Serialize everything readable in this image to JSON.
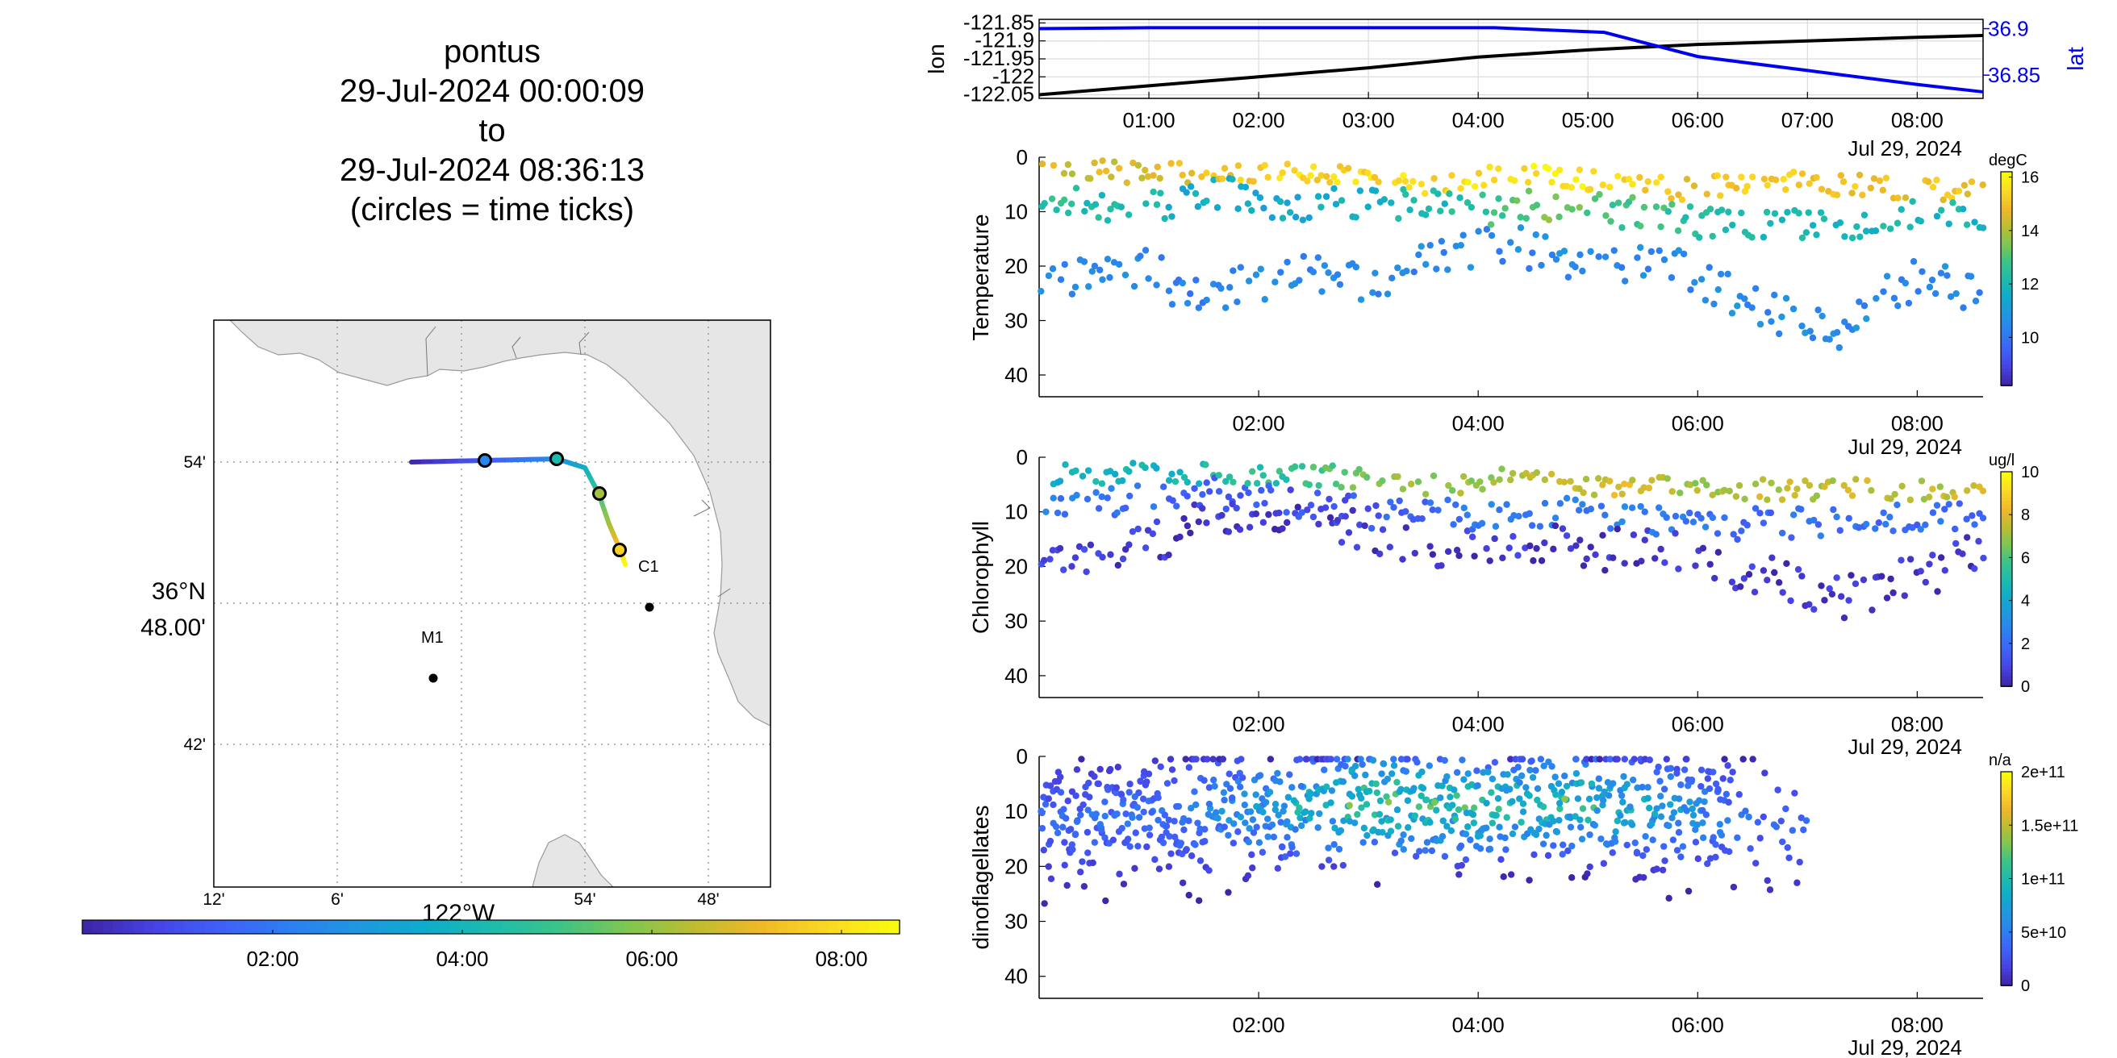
{
  "header": {
    "lines": [
      "pontus",
      "29-Jul-2024 00:00:09",
      "to",
      "29-Jul-2024 08:36:13",
      "(circles = time ticks)"
    ]
  },
  "colors": {
    "parula": [
      "#3e26a8",
      "#4743e3",
      "#3f61f8",
      "#2d7ff0",
      "#2196e0",
      "#0fabcc",
      "#1ebbad",
      "#3bc388",
      "#7dc653",
      "#bcbd32",
      "#efb82a",
      "#fbd824",
      "#f9fb0e"
    ],
    "track_lat": "#0000ee",
    "track_lon": "#000000",
    "map_land": "#e6e6e6",
    "station_dot": "#000000"
  },
  "map": {
    "lat_ticks": [
      "54'",
      "36°N\n48.00'",
      "42'"
    ],
    "lon_ticks": [
      "12'",
      "6'",
      "54'",
      "48'"
    ],
    "lon_axis_label": "122°W",
    "stations": [
      {
        "name": "C1"
      },
      {
        "name": "M1"
      }
    ],
    "time_ticks_on_track": 4
  },
  "time_colorbar": {
    "ticks": [
      "02:00",
      "04:00",
      "06:00",
      "08:00"
    ]
  },
  "chart_data": [
    {
      "type": "line",
      "title": "",
      "xlabel": "",
      "ylabel": "lon",
      "y2label": "lat",
      "x_tick_labels": [
        "01:00",
        "02:00",
        "03:00",
        "04:00",
        "05:00",
        "06:00",
        "07:00",
        "08:00"
      ],
      "x_range_hours": [
        0.0,
        8.6
      ],
      "y_ticks": [
        "-121.85",
        "-121.9",
        "-121.95",
        "-122",
        "-122.05"
      ],
      "ylim": [
        -122.06,
        -121.84
      ],
      "y2_ticks": [
        "36.9",
        "36.85"
      ],
      "y2lim": [
        36.825,
        36.91
      ],
      "grid": true,
      "series": [
        {
          "name": "lon",
          "x": [
            0.0,
            1.0,
            2.0,
            3.0,
            4.0,
            5.0,
            6.0,
            7.0,
            8.0,
            8.6
          ],
          "values": [
            -122.05,
            -122.025,
            -122.0,
            -121.975,
            -121.945,
            -121.925,
            -121.91,
            -121.9,
            -121.89,
            -121.885
          ]
        },
        {
          "name": "lat",
          "x": [
            0.0,
            1.0,
            2.0,
            3.0,
            4.15,
            5.15,
            6.0,
            7.0,
            8.0,
            8.6
          ],
          "values": [
            36.9,
            36.901,
            36.901,
            36.901,
            36.901,
            36.896,
            36.87,
            36.855,
            36.84,
            36.832
          ]
        }
      ],
      "date_label": "Jul 29, 2024"
    },
    {
      "type": "scatter",
      "title": "",
      "xlabel": "",
      "ylabel": "Temperature",
      "x_tick_labels": [
        "02:00",
        "04:00",
        "06:00",
        "08:00"
      ],
      "x_range_hours": [
        0.0,
        8.6
      ],
      "y_ticks": [
        "0",
        "10",
        "20",
        "30",
        "40"
      ],
      "ylim": [
        0,
        44
      ],
      "y_reversed": true,
      "colorbar": {
        "label": "degC",
        "ticks": [
          "10",
          "12",
          "14",
          "16"
        ],
        "range": [
          8.2,
          16.2
        ]
      },
      "date_label": "Jul 29, 2024",
      "profiles_hour": [
        0.1,
        0.9,
        1.5,
        2.3,
        3.0,
        3.6,
        4.2,
        4.8,
        5.3,
        5.9,
        6.6,
        7.3,
        8.0,
        8.5
      ],
      "surface_depth": [
        2,
        3,
        3,
        3,
        4,
        5,
        3,
        4,
        5,
        6,
        4,
        5,
        6,
        6
      ],
      "surface_value": [
        14.5,
        14.5,
        15.0,
        15.5,
        15.5,
        15.6,
        15.6,
        16.0,
        15.5,
        15.0,
        15.2,
        15.0,
        15.0,
        15.0
      ],
      "mid_depth": [
        8,
        10,
        6,
        9,
        8,
        9,
        10,
        8,
        10,
        12,
        13,
        12,
        11,
        10
      ],
      "mid_value": [
        12.5,
        12.0,
        11.5,
        11.5,
        12.0,
        12.0,
        13.0,
        13.5,
        13.0,
        12.5,
        12.0,
        12.0,
        12.0,
        12.0
      ],
      "deep_depth": [
        22,
        20,
        27,
        20,
        23,
        19,
        16,
        18,
        19,
        21,
        28,
        31,
        22,
        24
      ],
      "deep_value": [
        10.5,
        10.5,
        10.2,
        10.5,
        10.5,
        10.5,
        10.5,
        10.5,
        10.5,
        10.5,
        10.5,
        10.5,
        10.5,
        10.5
      ]
    },
    {
      "type": "scatter",
      "title": "",
      "xlabel": "",
      "ylabel": "Chlorophyll",
      "x_tick_labels": [
        "02:00",
        "04:00",
        "06:00",
        "08:00"
      ],
      "x_range_hours": [
        0.0,
        8.6
      ],
      "y_ticks": [
        "0",
        "10",
        "20",
        "30",
        "40"
      ],
      "ylim": [
        0,
        44
      ],
      "y_reversed": true,
      "colorbar": {
        "label": "ug/l",
        "ticks": [
          "0",
          "2",
          "4",
          "6",
          "8",
          "10"
        ],
        "range": [
          0,
          10
        ]
      },
      "date_label": "Jul 29, 2024",
      "profiles_hour": [
        0.1,
        0.9,
        1.5,
        2.3,
        3.0,
        3.6,
        4.2,
        4.8,
        5.3,
        5.9,
        6.6,
        7.3,
        8.0,
        8.5
      ],
      "surface_depth": [
        3,
        3,
        3,
        3,
        4,
        5,
        4,
        5,
        5,
        5,
        6,
        6,
        6,
        6
      ],
      "surface_value": [
        4.5,
        4.5,
        5.0,
        5.5,
        6.5,
        7.0,
        7.0,
        7.5,
        8.0,
        7.0,
        7.5,
        7.5,
        7.5,
        7.5
      ],
      "mid_depth": [
        10,
        8,
        6,
        8,
        10,
        11,
        10,
        10,
        11,
        13,
        12,
        12,
        11,
        11
      ],
      "mid_value": [
        2.5,
        2.0,
        1.5,
        1.2,
        1.5,
        2.0,
        2.5,
        2.5,
        2.5,
        2.2,
        2.0,
        2.0,
        2.0,
        2.0
      ],
      "deep_depth": [
        18,
        16,
        12,
        10,
        14,
        16,
        17,
        16,
        17,
        18,
        22,
        26,
        22,
        18
      ],
      "deep_value": [
        0.7,
        0.6,
        0.5,
        0.5,
        0.5,
        0.5,
        0.5,
        0.5,
        0.5,
        0.5,
        0.5,
        0.5,
        0.5,
        0.5
      ]
    },
    {
      "type": "scatter",
      "title": "",
      "xlabel": "",
      "ylabel": "dinoflagellates",
      "x_tick_labels": [
        "02:00",
        "04:00",
        "06:00",
        "08:00"
      ],
      "x_range_hours": [
        0.0,
        8.6
      ],
      "y_ticks": [
        "0",
        "10",
        "20",
        "30",
        "40"
      ],
      "ylim": [
        0,
        44
      ],
      "y_reversed": true,
      "colorbar": {
        "label": "n/a",
        "ticks": [
          "0",
          "5e+10",
          "1e+11",
          "1.5e+11",
          "2e+11"
        ],
        "range": [
          0,
          200000000000
        ]
      },
      "date_label": "Jul 29, 2024",
      "data_end_hour": 7.0,
      "profiles_hour": [
        0.1,
        0.9,
        1.5,
        2.3,
        3.0,
        3.6,
        4.2,
        4.8,
        5.3,
        5.9,
        6.6
      ],
      "core_depth": [
        12,
        11,
        10,
        9,
        8,
        9,
        9,
        8,
        9,
        10,
        12
      ],
      "core_value": [
        40000000000,
        50000000000,
        60000000000,
        90000000000,
        130000000000,
        120000000000,
        110000000000,
        120000000000,
        100000000000,
        70000000000,
        40000000000
      ],
      "spread_depth": [
        20,
        18,
        20,
        18,
        18,
        18,
        17,
        17,
        18,
        18,
        20
      ]
    }
  ]
}
